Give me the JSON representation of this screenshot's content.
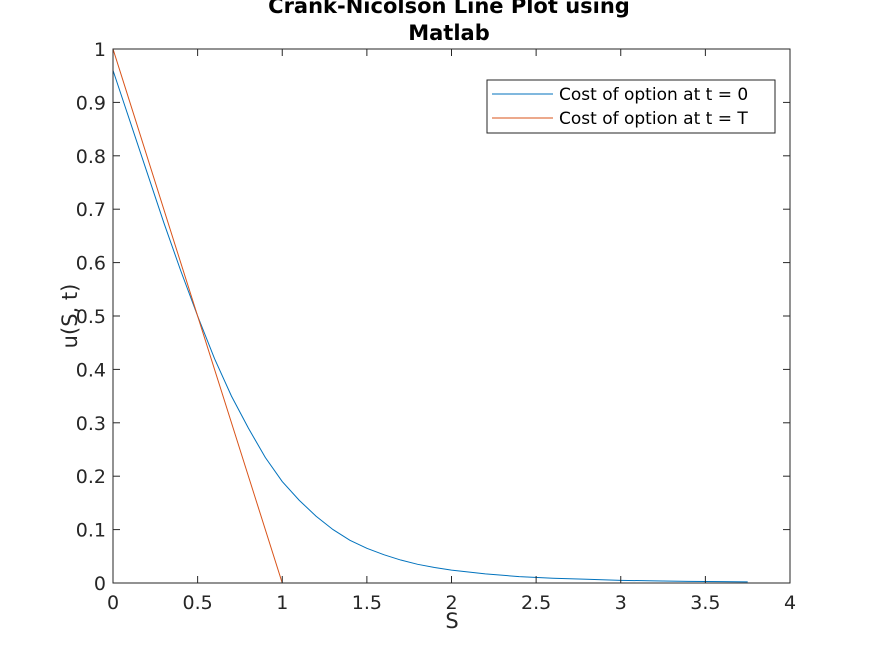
{
  "chart_data": {
    "type": "line",
    "title": [
      "Crank-Nicolson Line Plot using",
      "Matlab"
    ],
    "xlabel": "S",
    "ylabel": "u(S, t)",
    "xlim": [
      0,
      4
    ],
    "ylim": [
      0,
      1
    ],
    "xticks": [
      0,
      0.5,
      1,
      1.5,
      2,
      2.5,
      3,
      3.5,
      4
    ],
    "yticks": [
      0,
      0.1,
      0.2,
      0.3,
      0.4,
      0.5,
      0.6,
      0.7,
      0.8,
      0.9,
      1
    ],
    "xtick_labels": [
      "0",
      "0.5",
      "1",
      "1.5",
      "2",
      "2.5",
      "3",
      "3.5",
      "4"
    ],
    "ytick_labels": [
      "0",
      "0.1",
      "0.2",
      "0.3",
      "0.4",
      "0.5",
      "0.6",
      "0.7",
      "0.8",
      "0.9",
      "1"
    ],
    "grid": false,
    "legend_position": "top-right",
    "series": [
      {
        "name": "Cost of option at t = 0",
        "color": "#0072BD",
        "x": [
          0,
          0.1,
          0.2,
          0.3,
          0.4,
          0.5,
          0.6,
          0.7,
          0.8,
          0.9,
          1.0,
          1.1,
          1.2,
          1.3,
          1.4,
          1.5,
          1.6,
          1.7,
          1.8,
          1.9,
          2.0,
          2.2,
          2.4,
          2.6,
          2.8,
          3.0,
          3.2,
          3.4,
          3.6,
          3.75
        ],
        "y": [
          0.96,
          0.865,
          0.77,
          0.675,
          0.585,
          0.5,
          0.42,
          0.35,
          0.29,
          0.235,
          0.19,
          0.155,
          0.125,
          0.1,
          0.08,
          0.065,
          0.053,
          0.043,
          0.035,
          0.029,
          0.024,
          0.017,
          0.012,
          0.009,
          0.007,
          0.005,
          0.004,
          0.003,
          0.0025,
          0.002
        ]
      },
      {
        "name": "Cost of option at t = T",
        "color": "#D95319",
        "x": [
          0,
          1,
          3.75
        ],
        "y": [
          1,
          0,
          0
        ]
      }
    ]
  }
}
